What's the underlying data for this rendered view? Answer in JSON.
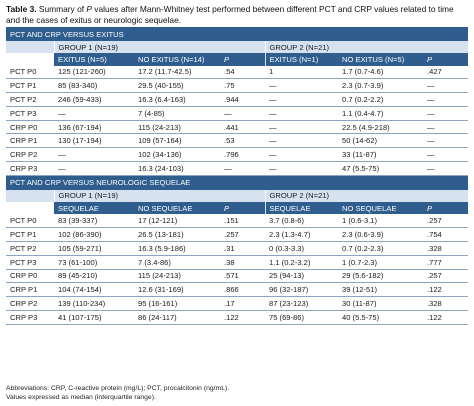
{
  "caption": {
    "label": "Table 3.",
    "text_before": "Summary of ",
    "italic": "P",
    "text_after": " values after Mann-Whitney test performed between different PCT and CRP values related to time and the cases of exitus or neurologic sequelae."
  },
  "sections": [
    {
      "title": "PCT AND CRP VERSUS EXITUS",
      "group1": "GROUP 1 (N=19)",
      "group2": "GROUP 2 (N=21)",
      "sub": [
        "EXITUS (N=5)",
        "NO EXITUS (N=14)",
        "P",
        "EXITUS (N=1)",
        "NO EXITUS (N=5)",
        "P"
      ],
      "rows": [
        [
          "PCT P0",
          "125 (121-260)",
          "17.2 (11.7-42.5)",
          ".54",
          "1",
          "1.7 (0.7-4.6)",
          ".427"
        ],
        [
          "PCT P1",
          "85 (83-340)",
          "29.5 (40-155)",
          ".75",
          "—",
          "2.3 (0.7-3.9)",
          "—"
        ],
        [
          "PCT P2",
          "246 (59-433)",
          "16.3 (6.4-163)",
          ".944",
          "—",
          "0.7 (0.2-2.2)",
          "—"
        ],
        [
          "PCT P3",
          "—",
          "7 (4-85)",
          "—",
          "—",
          "1.1 (0.4-4.7)",
          "—"
        ],
        [
          "CRP P0",
          "136 (67-194)",
          "115 (24-213)",
          ".441",
          "—",
          "22.5 (4.9-218)",
          "—"
        ],
        [
          "CRP P1",
          "130 (17-194)",
          "109 (57-164)",
          ".53",
          "—",
          "50 (14-62)",
          "—"
        ],
        [
          "CRP P2",
          "—",
          "102 (34-136)",
          ".796",
          "—",
          "33 (11-87)",
          "—"
        ],
        [
          "CRP P3",
          "—",
          "16.3 (24-103)",
          "—",
          "—",
          "47 (5.5-75)",
          "—"
        ]
      ]
    },
    {
      "title": "PCT AND CRP VERSUS NEUROLOGIC SEQUELAE",
      "group1": "GROUP 1 (N=19)",
      "group2": "GROUP 2 (N=21)",
      "sub": [
        "SEQUELAE",
        "NO SEQUELAE",
        "P",
        "SEQUELAE",
        "NO SEQUELAE",
        "P"
      ],
      "rows": [
        [
          "PCT P0",
          "83 (39-337)",
          "17 (12-121)",
          ".151",
          "3.7 (0.8-6)",
          "1 (0.6-3.1)",
          ".257"
        ],
        [
          "PCT P1",
          "102 (86-390)",
          "26.5 (13-181)",
          ".257",
          "2.3 (1.3-4.7)",
          "2.3 (0.6-3.9)",
          ".754"
        ],
        [
          "PCT P2",
          "105 (59-271)",
          "16.3 (5.9-186)",
          ".31",
          "0 (0.3-3.3)",
          "0.7 (0.2-2.3)",
          ".328"
        ],
        [
          "PCT P3",
          "73 (61-100)",
          "7 (3.4-86)",
          ".38",
          "1.1 (0.2-3.2)",
          "1 (0.7-2.3)",
          ".777"
        ],
        [
          "CRP P0",
          "89 (45-210)",
          "115 (24-213)",
          ".571",
          "25 (94-13)",
          "29 (5.6-182)",
          ".257"
        ],
        [
          "CRP P1",
          "104 (74-154)",
          "12.6 (31-169)",
          ".866",
          "96 (32-187)",
          "39 (12-51)",
          ".122"
        ],
        [
          "CRP P2",
          "139 (110-234)",
          "95 (16-161)",
          ".17",
          "87 (23-123)",
          "30 (11-87)",
          ".328"
        ],
        [
          "CRP P3",
          "41 (107-175)",
          "86 (24-117)",
          ".122",
          "75 (69-86)",
          "40 (5.5-75)",
          ".122"
        ]
      ]
    }
  ],
  "footnote": {
    "line1": "Abbreviations: CRP, C-reactive protein (mg/L); PCT, procalcitonin (ng/mL).",
    "line2": "Values expressed as median (interquartile range)."
  }
}
